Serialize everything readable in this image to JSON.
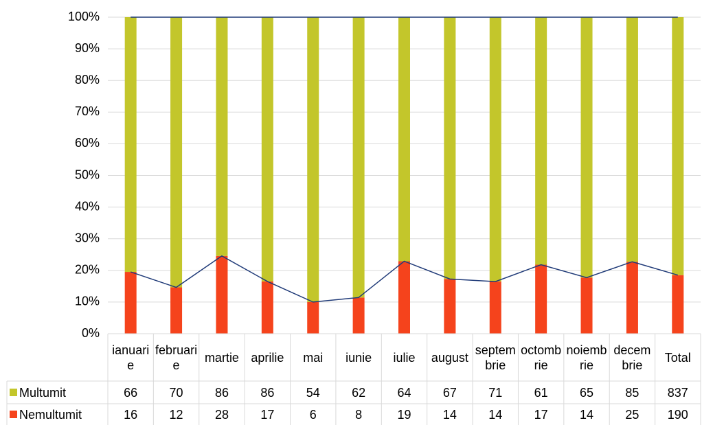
{
  "chart_data": {
    "type": "bar",
    "stacked": "percent",
    "categories": [
      "ianuarie",
      "februarie",
      "martie",
      "aprilie",
      "mai",
      "iunie",
      "iulie",
      "august",
      "septembrie",
      "octombrie",
      "noiembrie",
      "decembrie",
      "Total"
    ],
    "series": [
      {
        "name": "Multumit",
        "color": "#c3c62b",
        "values": [
          66,
          70,
          86,
          86,
          54,
          62,
          64,
          67,
          71,
          61,
          65,
          85,
          837
        ]
      },
      {
        "name": "Nemultumit",
        "color": "#f5431c",
        "values": [
          16,
          12,
          28,
          17,
          6,
          8,
          19,
          14,
          14,
          17,
          14,
          25,
          190
        ]
      }
    ],
    "ylim": [
      0,
      100
    ],
    "yticks": [
      {
        "value": 0,
        "label": "0%"
      },
      {
        "value": 10,
        "label": "10%"
      },
      {
        "value": 20,
        "label": "20%"
      },
      {
        "value": 30,
        "label": "30%"
      },
      {
        "value": 40,
        "label": "40%"
      },
      {
        "value": 50,
        "label": "50%"
      },
      {
        "value": 60,
        "label": "60%"
      },
      {
        "value": 70,
        "label": "70%"
      },
      {
        "value": 80,
        "label": "80%"
      },
      {
        "value": 90,
        "label": "90%"
      },
      {
        "value": 100,
        "label": "100%"
      }
    ],
    "grid": true,
    "series_lines_color": "#1f3a78"
  }
}
